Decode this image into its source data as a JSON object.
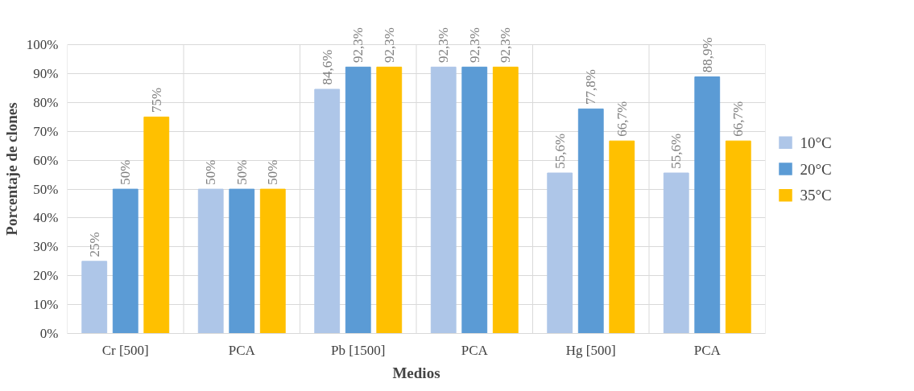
{
  "chart_data": {
    "type": "bar",
    "xlabel": "Medios",
    "ylabel": "Porcentaje de clones",
    "categories": [
      "Cr [500]",
      "PCA",
      "Pb [1500]",
      "PCA",
      "Hg [500]",
      "PCA"
    ],
    "series": [
      {
        "name": "10°C",
        "color": "#aec6e8",
        "values": [
          25,
          50,
          84.6,
          92.3,
          55.6,
          55.6
        ],
        "value_labels": [
          "25%",
          "50%",
          "84,6%",
          "92,3%",
          "55,6%",
          "55,6%"
        ]
      },
      {
        "name": "20°C",
        "color": "#5b9bd5",
        "values": [
          50,
          50,
          92.3,
          92.3,
          77.8,
          88.9
        ],
        "value_labels": [
          "50%",
          "50%",
          "92,3%",
          "92,3%",
          "77,8%",
          "88,9%"
        ]
      },
      {
        "name": "35°C",
        "color": "#ffc000",
        "values": [
          75,
          50,
          92.3,
          92.3,
          66.7,
          66.7
        ],
        "value_labels": [
          "75%",
          "50%",
          "92,3%",
          "92,3%",
          "66,7%",
          "66,7%"
        ]
      }
    ],
    "ylim": [
      0,
      100
    ],
    "yticks": [
      {
        "value": 0,
        "label": "0%"
      },
      {
        "value": 10,
        "label": "10%"
      },
      {
        "value": 20,
        "label": "20%"
      },
      {
        "value": 30,
        "label": "30%"
      },
      {
        "value": 40,
        "label": "40%"
      },
      {
        "value": 50,
        "label": "50%"
      },
      {
        "value": 60,
        "label": "60%"
      },
      {
        "value": 70,
        "label": "70%"
      },
      {
        "value": 80,
        "label": "80%"
      },
      {
        "value": 90,
        "label": "90%"
      },
      {
        "value": 100,
        "label": "100%"
      }
    ],
    "grid": true,
    "legend": "right"
  }
}
